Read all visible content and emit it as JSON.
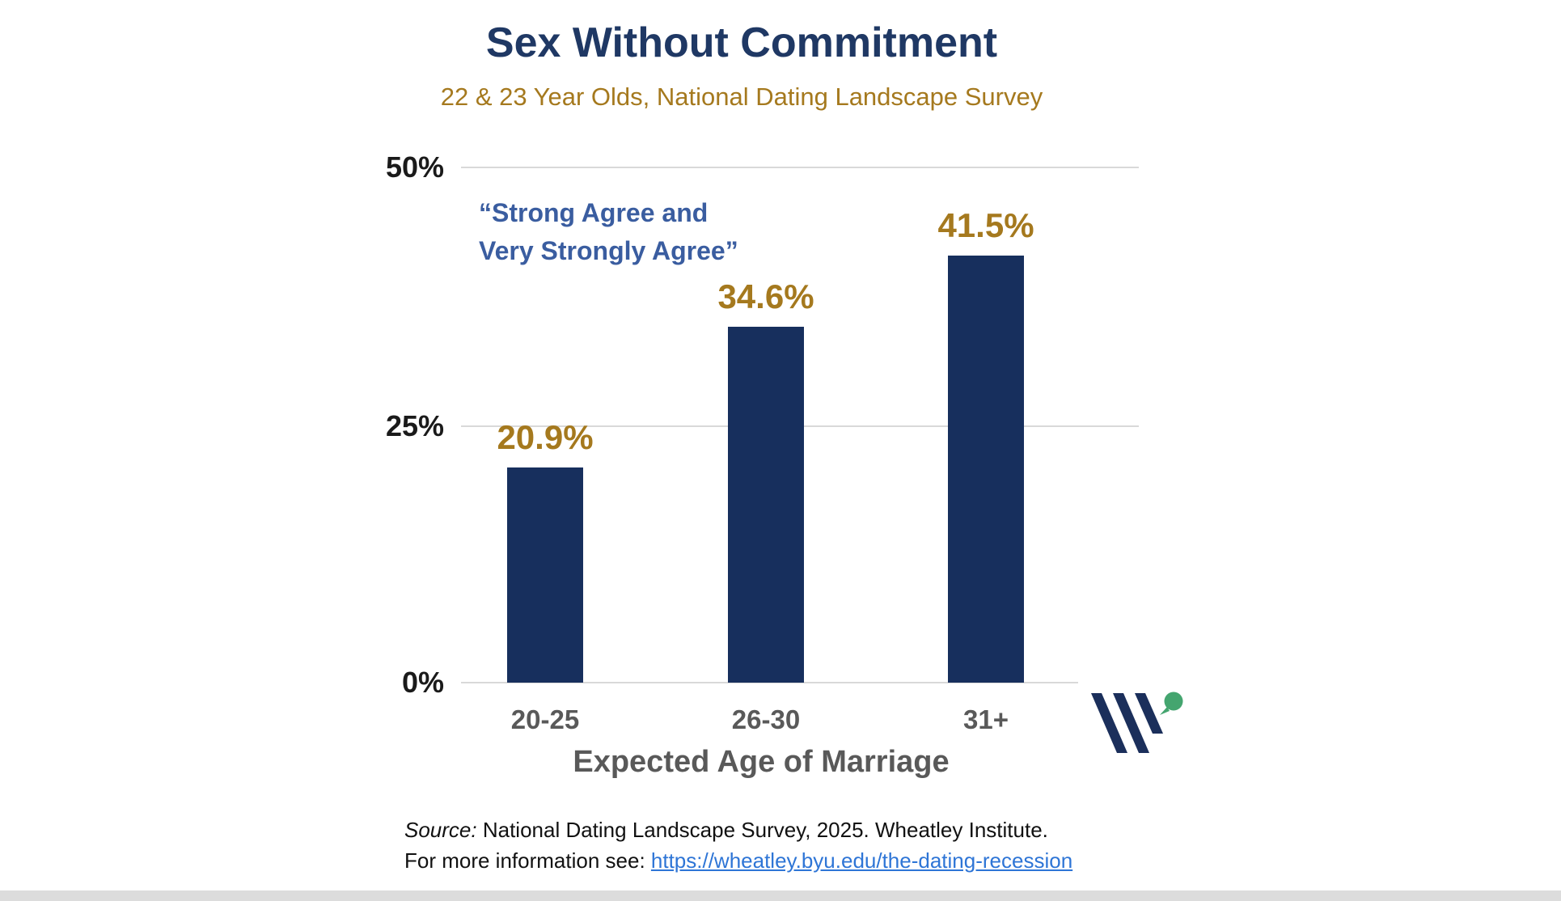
{
  "title": "Sex Without Commitment",
  "subtitle": "22 & 23 Year Olds, National Dating Landscape Survey",
  "annotation": {
    "line1": "“Strong Agree and",
    "line2": "Very Strongly Agree”"
  },
  "chart_data": {
    "type": "bar",
    "categories": [
      "20-25",
      "26-30",
      "31+"
    ],
    "values": [
      20.9,
      34.6,
      41.5
    ],
    "value_labels": [
      "20.9%",
      "34.6%",
      "41.5%"
    ],
    "title": "Sex Without Commitment",
    "subtitle": "22 & 23 Year Olds, National Dating Landscape Survey",
    "xlabel": "Expected Age of Marriage",
    "ylabel": "",
    "ylim": [
      0,
      50
    ],
    "yticks": [
      "0%",
      "25%",
      "50%"
    ],
    "grid": "horizontal gridlines at 25% and 50%",
    "legend": "none",
    "annotation": "“Strong Agree and Very Strongly Agree”"
  },
  "footer": {
    "source_prefix": "Source:",
    "source_text": " National Dating Landscape Survey, 2025. Wheatley Institute.",
    "info_text": "For more information see: ",
    "link_text": "https://wheatley.byu.edu/the-dating-recession"
  },
  "logo": {
    "name": "Wheatley Institute",
    "stripe_color": "#1B2F5B",
    "leaf_color": "#44A56F"
  },
  "colors": {
    "title_navy": "#1F3864",
    "subtitle_gold": "#A5791E",
    "bar_navy": "#172F5D",
    "data_label_gold": "#A5791E",
    "annotation_blue": "#3A5DA0",
    "axis_text_gray": "#595959",
    "tick_text_black": "#1A1A1A",
    "gridline_gray": "#D9D9D9",
    "link_blue": "#2E75D6",
    "footer_bar_gray": "#DCDCDC"
  }
}
